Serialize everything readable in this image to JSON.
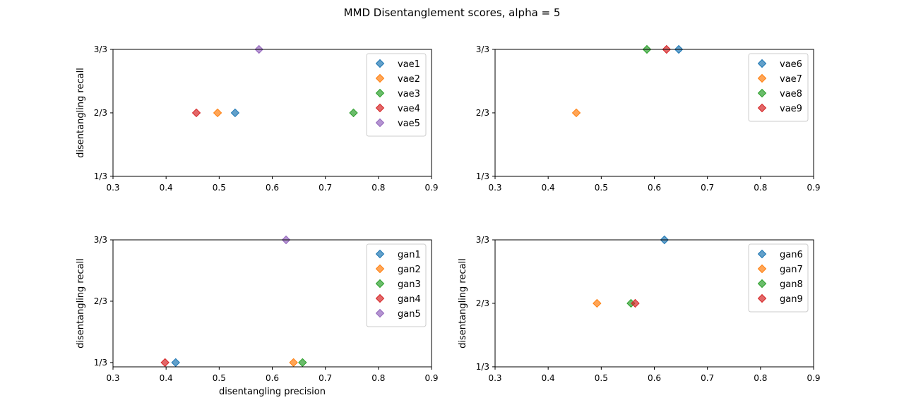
{
  "title": "MMD Disentanglement scores, alpha = 5",
  "chart_data": [
    {
      "type": "scatter",
      "xlabel": "",
      "ylabel": "disentangling recall",
      "xlim": [
        0.3,
        0.9
      ],
      "xticks": [
        0.3,
        0.4,
        0.5,
        0.6,
        0.7,
        0.8,
        0.9
      ],
      "xtick_labels": [
        "0.3",
        "0.4",
        "0.5",
        "0.6",
        "0.7",
        "0.8",
        "0.9"
      ],
      "ylim": [
        0.333,
        1.0
      ],
      "yticks": [
        0.333333,
        0.666667,
        1.0
      ],
      "ytick_labels": [
        "1/3",
        "2/3",
        "3/3"
      ],
      "grid": false,
      "legend": "top-right",
      "series": [
        {
          "name": "vae1",
          "x": [
            0.53
          ],
          "y": [
            0.666667
          ],
          "color": "#1f77b4"
        },
        {
          "name": "vae2",
          "x": [
            0.497
          ],
          "y": [
            0.666667
          ],
          "color": "#ff7f0e"
        },
        {
          "name": "vae3",
          "x": [
            0.753
          ],
          "y": [
            0.666667
          ],
          "color": "#2ca02c"
        },
        {
          "name": "vae4",
          "x": [
            0.457
          ],
          "y": [
            0.666667
          ],
          "color": "#d62728"
        },
        {
          "name": "vae5",
          "x": [
            0.575
          ],
          "y": [
            1.0
          ],
          "color": "#9467bd"
        }
      ]
    },
    {
      "type": "scatter",
      "xlabel": "",
      "ylabel": "",
      "xlim": [
        0.3,
        0.9
      ],
      "xticks": [
        0.3,
        0.4,
        0.5,
        0.6,
        0.7,
        0.8,
        0.9
      ],
      "xtick_labels": [
        "0.3",
        "0.4",
        "0.5",
        "0.6",
        "0.7",
        "0.8",
        "0.9"
      ],
      "ylim": [
        0.333,
        1.0
      ],
      "yticks": [
        0.333333,
        0.666667,
        1.0
      ],
      "ytick_labels": [
        "1/3",
        "2/3",
        "3/3"
      ],
      "grid": false,
      "legend": "top-right",
      "series": [
        {
          "name": "vae6",
          "x": [
            0.646
          ],
          "y": [
            1.0
          ],
          "color": "#1f77b4"
        },
        {
          "name": "vae7",
          "x": [
            0.453
          ],
          "y": [
            0.666667
          ],
          "color": "#ff7f0e"
        },
        {
          "name": "vae8",
          "x": [
            0.586
          ],
          "y": [
            1.0
          ],
          "color": "#2ca02c"
        },
        {
          "name": "vae9",
          "x": [
            0.623
          ],
          "y": [
            1.0
          ],
          "color": "#d62728"
        }
      ]
    },
    {
      "type": "scatter",
      "xlabel": "disentangling precision",
      "ylabel": "disentangling recall",
      "xlim": [
        0.3,
        0.9
      ],
      "xticks": [
        0.3,
        0.4,
        0.5,
        0.6,
        0.7,
        0.8,
        0.9
      ],
      "xtick_labels": [
        "0.3",
        "0.4",
        "0.5",
        "0.6",
        "0.7",
        "0.8",
        "0.9"
      ],
      "ylim": [
        0.31,
        1.0
      ],
      "yticks": [
        0.333333,
        0.666667,
        1.0
      ],
      "ytick_labels": [
        "1/3",
        "2/3",
        "3/3"
      ],
      "grid": false,
      "legend": "top-right",
      "series": [
        {
          "name": "gan1",
          "x": [
            0.418
          ],
          "y": [
            0.333333
          ],
          "color": "#1f77b4"
        },
        {
          "name": "gan2",
          "x": [
            0.64
          ],
          "y": [
            0.333333
          ],
          "color": "#ff7f0e"
        },
        {
          "name": "gan3",
          "x": [
            0.657
          ],
          "y": [
            0.333333
          ],
          "color": "#2ca02c"
        },
        {
          "name": "gan4",
          "x": [
            0.398
          ],
          "y": [
            0.333333
          ],
          "color": "#d62728"
        },
        {
          "name": "gan5",
          "x": [
            0.626
          ],
          "y": [
            1.0
          ],
          "color": "#9467bd"
        }
      ]
    },
    {
      "type": "scatter",
      "xlabel": "",
      "ylabel": "disentangling recall",
      "xlim": [
        0.3,
        0.9
      ],
      "xticks": [
        0.3,
        0.4,
        0.5,
        0.6,
        0.7,
        0.8,
        0.9
      ],
      "xtick_labels": [
        "0.3",
        "0.4",
        "0.5",
        "0.6",
        "0.7",
        "0.8",
        "0.9"
      ],
      "ylim": [
        0.333,
        1.0
      ],
      "yticks": [
        0.333333,
        0.666667,
        1.0
      ],
      "ytick_labels": [
        "1/3",
        "2/3",
        "3/3"
      ],
      "grid": false,
      "legend": "top-right",
      "series": [
        {
          "name": "gan6",
          "x": [
            0.619
          ],
          "y": [
            1.0
          ],
          "color": "#1f77b4"
        },
        {
          "name": "gan7",
          "x": [
            0.492
          ],
          "y": [
            0.666667
          ],
          "color": "#ff7f0e"
        },
        {
          "name": "gan8",
          "x": [
            0.556
          ],
          "y": [
            0.666667
          ],
          "color": "#2ca02c"
        },
        {
          "name": "gan9",
          "x": [
            0.564
          ],
          "y": [
            0.666667
          ],
          "color": "#d62728"
        }
      ]
    }
  ]
}
